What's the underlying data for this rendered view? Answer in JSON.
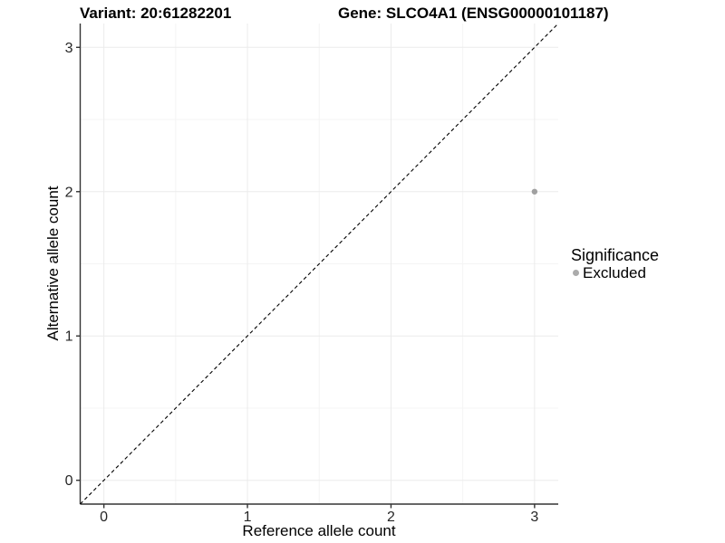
{
  "header": {
    "title_left": "Variant: 20:61282201",
    "title_right": "Gene: SLCO4A1 (ENSG00000101187)"
  },
  "colors": {
    "background": "#ffffff",
    "grid_major": "#ebebeb",
    "grid_minor": "#f4f4f4",
    "axis_line": "#333333",
    "tick_label": "#262626",
    "point": "#a0a0a0",
    "legend_key": "#ababab",
    "reference_line": "#000000"
  },
  "chart_data": {
    "type": "scatter",
    "titles": {
      "left": "Variant: 20:61282201",
      "right": "Gene: SLCO4A1 (ENSG00000101187)"
    },
    "xlabel": "Reference allele count",
    "ylabel": "Alternative allele count",
    "x_ticks": [
      0,
      1,
      2,
      3
    ],
    "y_ticks": [
      0,
      1,
      2,
      3
    ],
    "x_minor_ticks": [
      0.5,
      1.5,
      2.5
    ],
    "y_minor_ticks": [
      0.5,
      1.5,
      2.5
    ],
    "xlim": [
      -0.165,
      3.165
    ],
    "ylim": [
      -0.165,
      3.165
    ],
    "grid": "major+minor",
    "reference_line": {
      "type": "identity",
      "slope": 1,
      "intercept": 0,
      "style": "dashed",
      "color": "#000000"
    },
    "series": [
      {
        "name": "Excluded",
        "color": "#a0a0a0",
        "points": [
          {
            "x": 3,
            "y": 2
          }
        ]
      }
    ],
    "legend": {
      "title": "Significance",
      "position": "right",
      "items": [
        {
          "label": "Excluded",
          "color": "#ababab"
        }
      ]
    }
  }
}
